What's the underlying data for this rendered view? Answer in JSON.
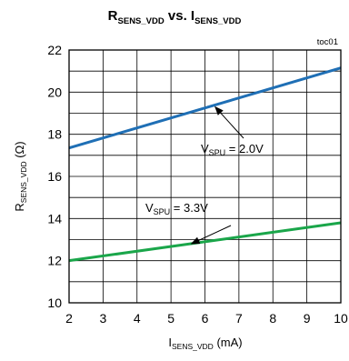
{
  "chart_data": {
    "type": "line",
    "title": {
      "main": "R",
      "main_sub": "SENS_VDD",
      "vs": " vs. I",
      "vs_sub": "SENS_VDD"
    },
    "tag": "toc01",
    "xlabel": {
      "main": "I",
      "sub": "SENS_VDD",
      "unit": " (mA)"
    },
    "ylabel": {
      "main": "R",
      "sub": "SENS_VDD",
      "unit": " (Ω)"
    },
    "xlim": [
      2,
      10
    ],
    "ylim": [
      10,
      22
    ],
    "xticks": [
      "2",
      "3",
      "4",
      "5",
      "6",
      "7",
      "8",
      "9",
      "10"
    ],
    "yticks": [
      "10",
      "12",
      "14",
      "16",
      "18",
      "20",
      "22"
    ],
    "grid": true,
    "series": [
      {
        "name": "V_SPU = 2.0V",
        "color": "#1f6fb5",
        "x": [
          2,
          10
        ],
        "y": [
          17.35,
          21.15
        ]
      },
      {
        "name": "V_SPU = 3.3V",
        "color": "#1aa64a",
        "x": [
          2,
          10
        ],
        "y": [
          12.0,
          13.8
        ]
      }
    ],
    "annotations": [
      {
        "series": 0,
        "text_main": "V",
        "text_sub": "SPU",
        "text_rest": " = 2.0V",
        "target_x": 6.3,
        "target_y": 19.3
      },
      {
        "series": 1,
        "text_main": "V",
        "text_sub": "SPU",
        "text_rest": " = 3.3V",
        "target_x": 5.6,
        "target_y": 12.8
      }
    ]
  }
}
